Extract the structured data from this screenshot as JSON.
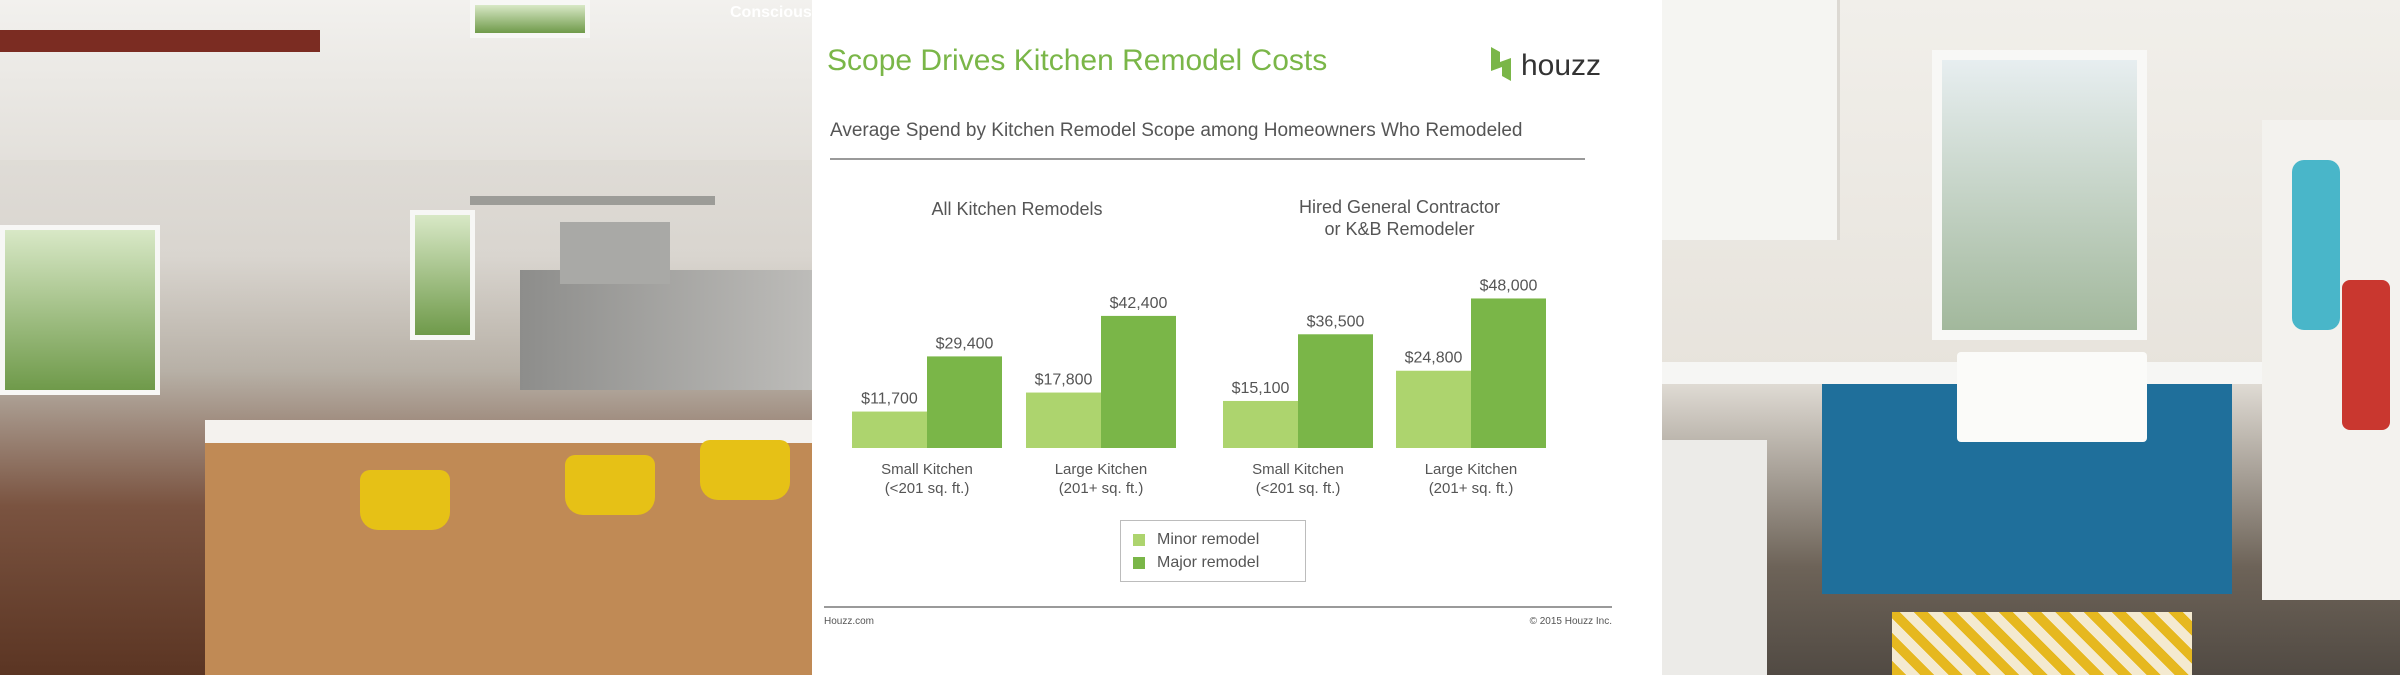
{
  "photo_left": {
    "caption": "Conscious"
  },
  "chart_data": {
    "type": "bar",
    "title": "Scope Drives Kitchen Remodel Costs",
    "subtitle": "Average Spend by Kitchen Remodel Scope among Homeowners Who Remodeled",
    "brand": "houzz",
    "ylim": [
      0,
      52000
    ],
    "grid": false,
    "legend_position": "bottom-center",
    "series": [
      {
        "name": "Minor remodel",
        "color": "#add46e"
      },
      {
        "name": "Major remodel",
        "color": "#7ab648"
      }
    ],
    "panels": [
      {
        "title_lines": [
          "All Kitchen Remodels"
        ],
        "groups": [
          {
            "label_lines": [
              "Small Kitchen",
              "(<201 sq. ft.)"
            ],
            "values": [
              11700,
              29400
            ],
            "value_labels": [
              "$11,700",
              "$29,400"
            ]
          },
          {
            "label_lines": [
              "Large Kitchen",
              "(201+ sq. ft.)"
            ],
            "values": [
              17800,
              42400
            ],
            "value_labels": [
              "$17,800",
              "$42,400"
            ]
          }
        ]
      },
      {
        "title_lines": [
          "Hired General Contractor",
          "or K&B Remodeler"
        ],
        "groups": [
          {
            "label_lines": [
              "Small Kitchen",
              "(<201 sq. ft.)"
            ],
            "values": [
              15100,
              36500
            ],
            "value_labels": [
              "$15,100",
              "$36,500"
            ]
          },
          {
            "label_lines": [
              "Large Kitchen",
              "(201+ sq. ft.)"
            ],
            "values": [
              24800,
              48000
            ],
            "value_labels": [
              "$24,800",
              "$48,000"
            ]
          }
        ]
      }
    ]
  },
  "footer": {
    "source": "Houzz.com",
    "copyright": "© 2015 Houzz Inc."
  }
}
